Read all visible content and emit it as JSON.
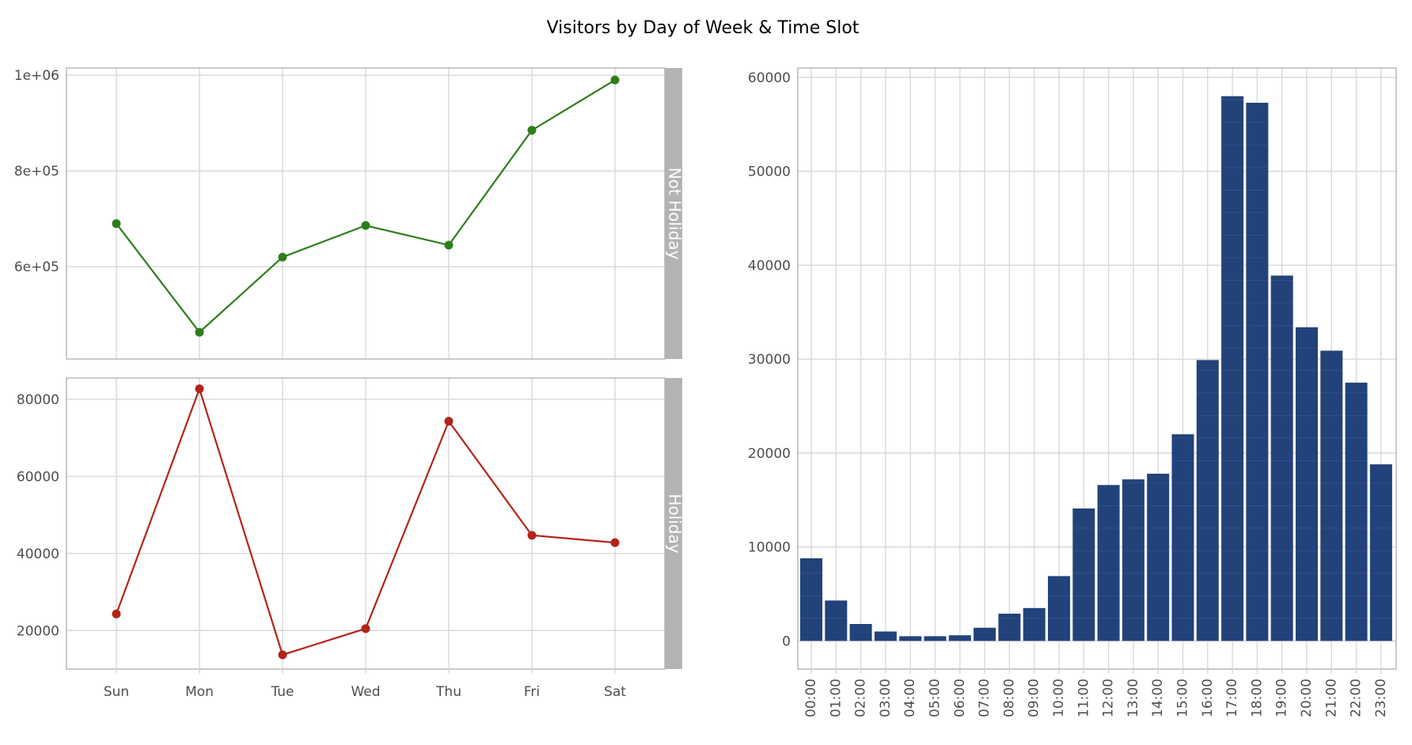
{
  "title": "Visitors by Day of Week & Time Slot",
  "colors": {
    "not_holiday": "#2e7d1b",
    "holiday": "#b22418",
    "bars": "#22427a",
    "bar_stripe": "#5b76a8",
    "grid": "#d9d9d9",
    "panel_border": "#b3b3b3",
    "strip_bg": "#b3b3b3"
  },
  "chart_data": [
    {
      "type": "line",
      "facet_label": "Not Holiday",
      "categories": [
        "Sun",
        "Mon",
        "Tue",
        "Wed",
        "Thu",
        "Fri",
        "Sat"
      ],
      "values": [
        690000,
        463000,
        620000,
        686000,
        645000,
        885000,
        990000
      ],
      "ylim": [
        407000,
        1015000
      ],
      "yticks": [
        600000,
        800000,
        1000000
      ],
      "ytick_labels": [
        "6e+05",
        "8e+05",
        "1e+06"
      ],
      "grid": true
    },
    {
      "type": "line",
      "facet_label": "Holiday",
      "categories": [
        "Sun",
        "Mon",
        "Tue",
        "Wed",
        "Thu",
        "Fri",
        "Sat"
      ],
      "values": [
        24300,
        82700,
        13700,
        20500,
        74300,
        44700,
        42800
      ],
      "ylim": [
        10000,
        85500
      ],
      "yticks": [
        20000,
        40000,
        60000,
        80000
      ],
      "ytick_labels": [
        "20000",
        "40000",
        "60000",
        "80000"
      ],
      "grid": true
    },
    {
      "type": "bar",
      "categories": [
        "00:00",
        "01:00",
        "02:00",
        "03:00",
        "04:00",
        "05:00",
        "06:00",
        "07:00",
        "08:00",
        "09:00",
        "10:00",
        "11:00",
        "12:00",
        "13:00",
        "14:00",
        "15:00",
        "16:00",
        "17:00",
        "18:00",
        "19:00",
        "20:00",
        "21:00",
        "22:00",
        "23:00"
      ],
      "values": [
        8800,
        4300,
        1800,
        1000,
        500,
        500,
        600,
        1400,
        2900,
        3500,
        6900,
        14100,
        16600,
        17200,
        17800,
        22000,
        29900,
        58000,
        57300,
        38900,
        33400,
        30900,
        27500,
        18800
      ],
      "ylim": [
        -3000,
        61000
      ],
      "yticks": [
        0,
        10000,
        20000,
        30000,
        40000,
        50000,
        60000
      ],
      "ytick_labels": [
        "0",
        "10000",
        "20000",
        "30000",
        "40000",
        "50000",
        "60000"
      ],
      "grid": true
    }
  ]
}
